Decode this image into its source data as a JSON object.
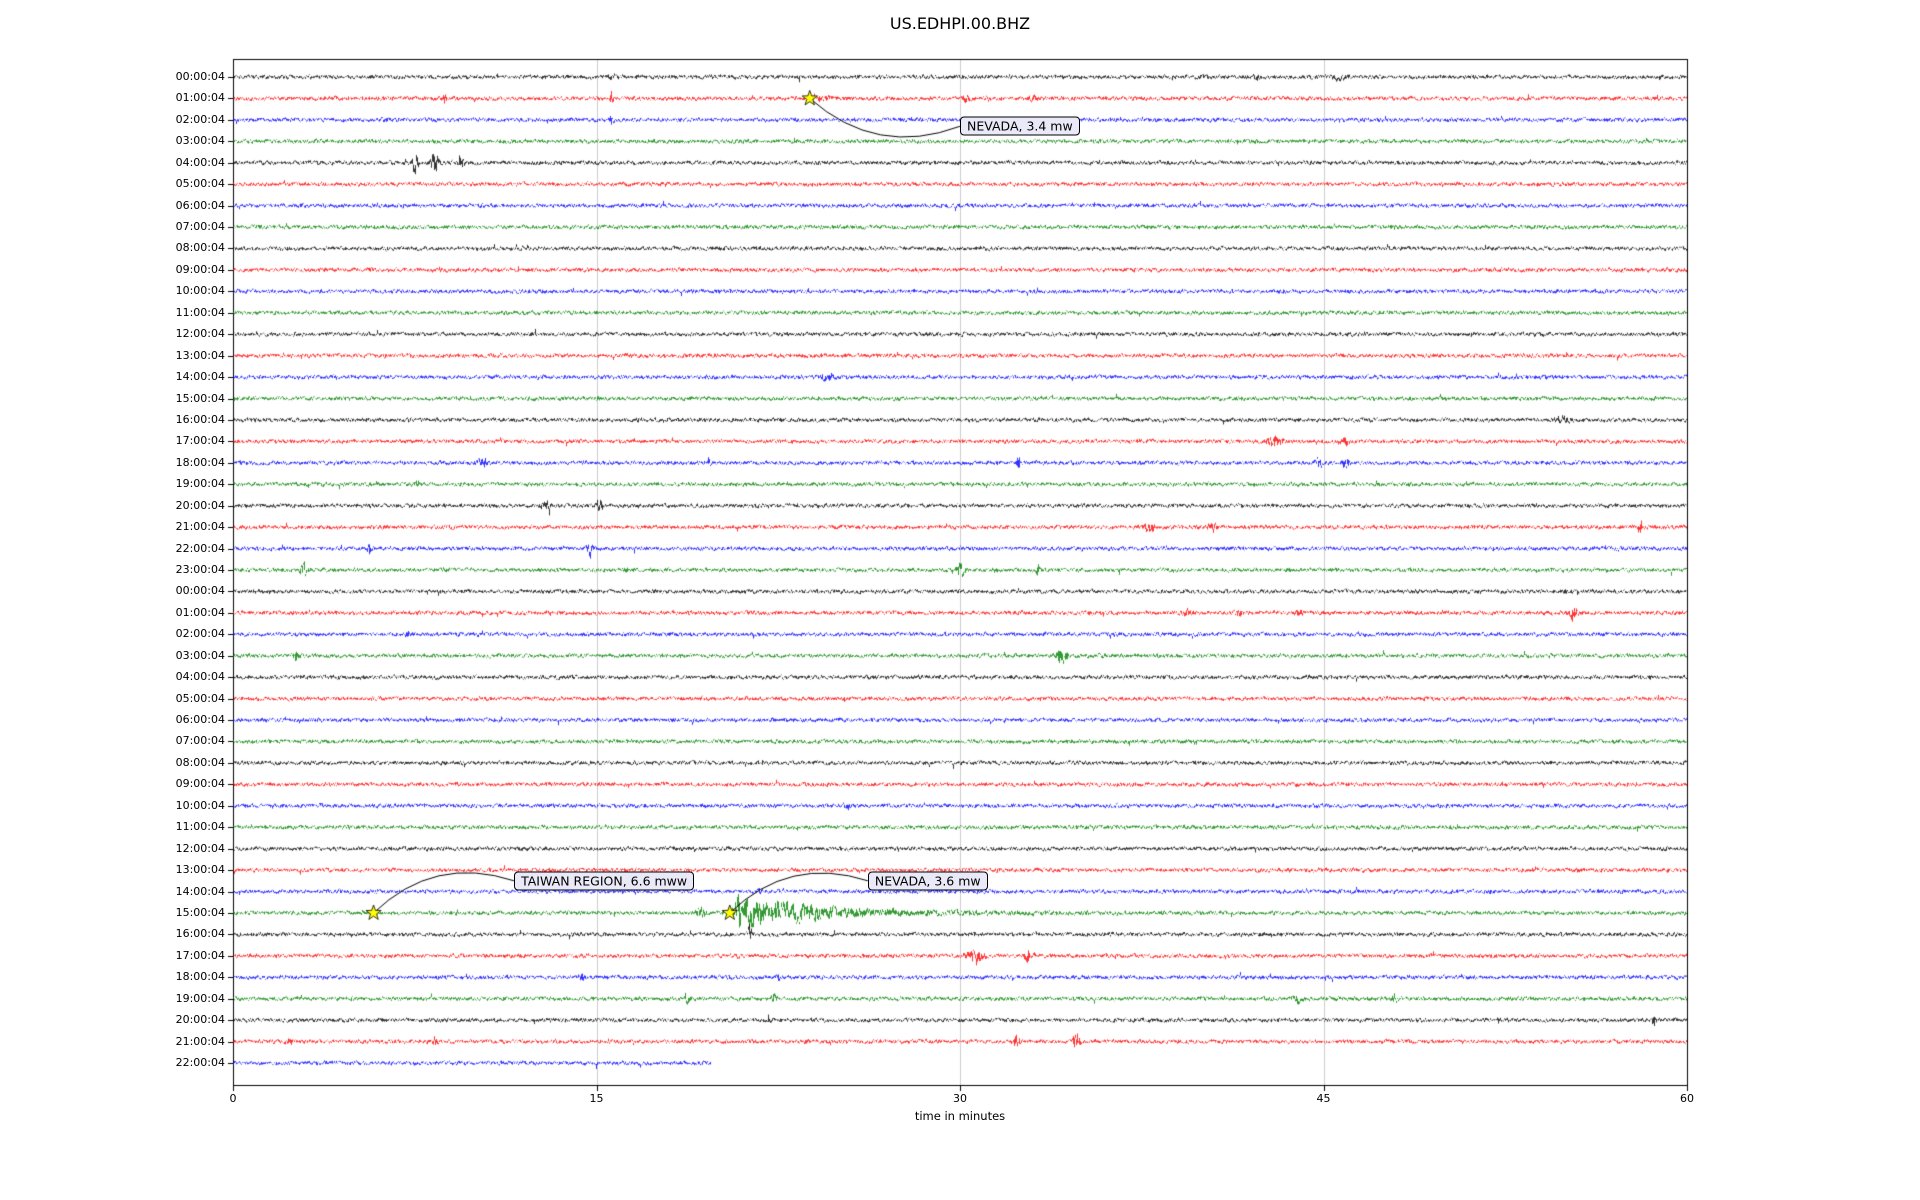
{
  "chart_data": {
    "type": "line",
    "subtype": "helicorder-dayplot",
    "title": "US.EDHPI.00.BHZ",
    "xlabel": "time in minutes",
    "xlim": [
      0,
      60
    ],
    "xticks": [
      0,
      15,
      30,
      45,
      60
    ],
    "grid": true,
    "last_trace_end_minute": 19.7,
    "trace_color_cycle": [
      "#000000",
      "#ff0000",
      "#0000ff",
      "#008000"
    ],
    "rows": [
      {
        "label": "00:00:04",
        "color": "#000000"
      },
      {
        "label": "01:00:04",
        "color": "#ff0000"
      },
      {
        "label": "02:00:04",
        "color": "#0000ff"
      },
      {
        "label": "03:00:04",
        "color": "#008000"
      },
      {
        "label": "04:00:04",
        "color": "#000000"
      },
      {
        "label": "05:00:04",
        "color": "#ff0000"
      },
      {
        "label": "06:00:04",
        "color": "#0000ff"
      },
      {
        "label": "07:00:04",
        "color": "#008000"
      },
      {
        "label": "08:00:04",
        "color": "#000000"
      },
      {
        "label": "09:00:04",
        "color": "#ff0000"
      },
      {
        "label": "10:00:04",
        "color": "#0000ff"
      },
      {
        "label": "11:00:04",
        "color": "#008000"
      },
      {
        "label": "12:00:04",
        "color": "#000000"
      },
      {
        "label": "13:00:04",
        "color": "#ff0000"
      },
      {
        "label": "14:00:04",
        "color": "#0000ff"
      },
      {
        "label": "15:00:04",
        "color": "#008000"
      },
      {
        "label": "16:00:04",
        "color": "#000000"
      },
      {
        "label": "17:00:04",
        "color": "#ff0000"
      },
      {
        "label": "18:00:04",
        "color": "#0000ff"
      },
      {
        "label": "19:00:04",
        "color": "#008000"
      },
      {
        "label": "20:00:04",
        "color": "#000000"
      },
      {
        "label": "21:00:04",
        "color": "#ff0000"
      },
      {
        "label": "22:00:04",
        "color": "#0000ff"
      },
      {
        "label": "23:00:04",
        "color": "#008000"
      },
      {
        "label": "00:00:04",
        "color": "#000000"
      },
      {
        "label": "01:00:04",
        "color": "#ff0000"
      },
      {
        "label": "02:00:04",
        "color": "#0000ff"
      },
      {
        "label": "03:00:04",
        "color": "#008000"
      },
      {
        "label": "04:00:04",
        "color": "#000000"
      },
      {
        "label": "05:00:04",
        "color": "#ff0000"
      },
      {
        "label": "06:00:04",
        "color": "#0000ff"
      },
      {
        "label": "07:00:04",
        "color": "#008000"
      },
      {
        "label": "08:00:04",
        "color": "#000000"
      },
      {
        "label": "09:00:04",
        "color": "#ff0000"
      },
      {
        "label": "10:00:04",
        "color": "#0000ff"
      },
      {
        "label": "11:00:04",
        "color": "#008000"
      },
      {
        "label": "12:00:04",
        "color": "#000000"
      },
      {
        "label": "13:00:04",
        "color": "#ff0000"
      },
      {
        "label": "14:00:04",
        "color": "#0000ff"
      },
      {
        "label": "15:00:04",
        "color": "#008000"
      },
      {
        "label": "16:00:04",
        "color": "#000000"
      },
      {
        "label": "17:00:04",
        "color": "#ff0000"
      },
      {
        "label": "18:00:04",
        "color": "#0000ff"
      },
      {
        "label": "19:00:04",
        "color": "#008000"
      },
      {
        "label": "20:00:04",
        "color": "#000000"
      },
      {
        "label": "21:00:04",
        "color": "#ff0000"
      },
      {
        "label": "22:00:04",
        "color": "#0000ff"
      }
    ],
    "events": [
      {
        "label": "NEVADA, 3.4 mw",
        "star_row": 1,
        "star_minute": 23.8,
        "box_minute": 30.0,
        "box_row": 2.3,
        "rad": 0.3,
        "marker_color": "#ffff00"
      },
      {
        "label": "TAIWAN REGION, 6.6 mww",
        "star_row": 39,
        "star_minute": 5.8,
        "box_minute": 11.6,
        "box_row": 37.5,
        "rad": -0.3,
        "marker_color": "#ffff00"
      },
      {
        "label": "NEVADA, 3.6 mw",
        "star_row": 39,
        "star_minute": 20.5,
        "box_minute": 26.2,
        "box_row": 37.5,
        "rad": -0.3,
        "marker_color": "#ffff00"
      }
    ],
    "bursts": [
      {
        "row": 0,
        "m": 15.7,
        "amp": 1.5,
        "w": 0.15
      },
      {
        "row": 0,
        "m": 42.2,
        "amp": 2.0,
        "w": 0.1
      },
      {
        "row": 0,
        "m": 45.6,
        "amp": 1.2,
        "w": 0.3
      },
      {
        "row": 1,
        "m": 8.7,
        "amp": 2.5,
        "w": 0.06
      },
      {
        "row": 1,
        "m": 15.6,
        "amp": 5.0,
        "w": 0.06
      },
      {
        "row": 1,
        "m": 24.3,
        "amp": 1.2,
        "w": 0.3
      },
      {
        "row": 1,
        "m": 30.2,
        "amp": 1.5,
        "w": 0.15
      },
      {
        "row": 1,
        "m": 33.0,
        "amp": 1.2,
        "w": 0.15
      },
      {
        "row": 2,
        "m": 15.6,
        "amp": 2.0,
        "w": 0.08
      },
      {
        "row": 4,
        "m": 7.5,
        "amp": 4.5,
        "w": 0.12
      },
      {
        "row": 4,
        "m": 8.3,
        "amp": 6.0,
        "w": 0.15
      },
      {
        "row": 4,
        "m": 9.4,
        "amp": 4.0,
        "w": 0.12
      },
      {
        "row": 14,
        "m": 24.5,
        "amp": 1.3,
        "w": 0.4
      },
      {
        "row": 16,
        "m": 54.9,
        "amp": 1.5,
        "w": 0.3
      },
      {
        "row": 17,
        "m": 43.0,
        "amp": 3.5,
        "w": 0.25
      },
      {
        "row": 17,
        "m": 45.8,
        "amp": 2.0,
        "w": 0.2
      },
      {
        "row": 18,
        "m": 10.3,
        "amp": 2.0,
        "w": 0.2
      },
      {
        "row": 18,
        "m": 19.6,
        "amp": 2.0,
        "w": 0.1
      },
      {
        "row": 18,
        "m": 32.4,
        "amp": 2.5,
        "w": 0.08
      },
      {
        "row": 18,
        "m": 44.8,
        "amp": 2.0,
        "w": 0.15
      },
      {
        "row": 18,
        "m": 45.9,
        "amp": 2.2,
        "w": 0.15
      },
      {
        "row": 19,
        "m": 7.6,
        "amp": 1.5,
        "w": 0.08
      },
      {
        "row": 20,
        "m": 12.9,
        "amp": 2.5,
        "w": 0.15
      },
      {
        "row": 20,
        "m": 15.1,
        "amp": 3.0,
        "w": 0.12
      },
      {
        "row": 21,
        "m": 37.8,
        "amp": 2.0,
        "w": 0.2
      },
      {
        "row": 21,
        "m": 40.4,
        "amp": 2.2,
        "w": 0.2
      },
      {
        "row": 21,
        "m": 58.1,
        "amp": 4.5,
        "w": 0.06
      },
      {
        "row": 22,
        "m": 5.6,
        "amp": 2.8,
        "w": 0.06
      },
      {
        "row": 22,
        "m": 14.7,
        "amp": 3.5,
        "w": 0.1
      },
      {
        "row": 23,
        "m": 2.9,
        "amp": 2.5,
        "w": 0.15
      },
      {
        "row": 23,
        "m": 16.2,
        "amp": 1.5,
        "w": 0.1
      },
      {
        "row": 23,
        "m": 30.0,
        "amp": 2.5,
        "w": 0.2
      },
      {
        "row": 23,
        "m": 33.2,
        "amp": 3.0,
        "w": 0.08
      },
      {
        "row": 25,
        "m": 39.3,
        "amp": 1.8,
        "w": 0.2
      },
      {
        "row": 25,
        "m": 41.5,
        "amp": 1.5,
        "w": 0.15
      },
      {
        "row": 25,
        "m": 44.0,
        "amp": 1.8,
        "w": 0.15
      },
      {
        "row": 25,
        "m": 55.3,
        "amp": 2.5,
        "w": 0.2
      },
      {
        "row": 26,
        "m": 7.2,
        "amp": 1.5,
        "w": 0.08
      },
      {
        "row": 27,
        "m": 2.6,
        "amp": 2.5,
        "w": 0.12
      },
      {
        "row": 27,
        "m": 34.2,
        "amp": 2.8,
        "w": 0.25
      },
      {
        "row": 34,
        "m": 25.3,
        "amp": 1.3,
        "w": 0.15
      },
      {
        "row": 38,
        "m": 21.7,
        "amp": 1.8,
        "w": 0.08
      },
      {
        "row": 39,
        "m": 19.3,
        "amp": 2.0,
        "w": 0.2
      },
      {
        "row": 39,
        "m": 20.9,
        "amp": 9.0,
        "w": 0.25,
        "decay": 1.2
      },
      {
        "row": 39,
        "m": 22.5,
        "amp": 3.0,
        "w": 0.5,
        "decay": 4.0
      },
      {
        "row": 40,
        "m": 21.3,
        "amp": 5.0,
        "w": 0.08
      },
      {
        "row": 41,
        "m": 30.6,
        "amp": 3.5,
        "w": 0.3
      },
      {
        "row": 41,
        "m": 32.8,
        "amp": 2.0,
        "w": 0.15
      },
      {
        "row": 42,
        "m": 14.4,
        "amp": 2.5,
        "w": 0.1
      },
      {
        "row": 42,
        "m": 22.5,
        "amp": 2.0,
        "w": 0.1
      },
      {
        "row": 43,
        "m": 18.7,
        "amp": 2.0,
        "w": 0.15
      },
      {
        "row": 43,
        "m": 22.3,
        "amp": 1.8,
        "w": 0.1
      },
      {
        "row": 43,
        "m": 43.9,
        "amp": 2.0,
        "w": 0.15
      },
      {
        "row": 43,
        "m": 47.9,
        "amp": 1.5,
        "w": 0.15
      },
      {
        "row": 44,
        "m": 22.1,
        "amp": 3.0,
        "w": 0.07
      },
      {
        "row": 44,
        "m": 58.6,
        "amp": 2.5,
        "w": 0.1
      },
      {
        "row": 45,
        "m": 2.3,
        "amp": 2.5,
        "w": 0.12
      },
      {
        "row": 45,
        "m": 8.3,
        "amp": 2.2,
        "w": 0.1
      },
      {
        "row": 45,
        "m": 32.3,
        "amp": 2.5,
        "w": 0.15
      },
      {
        "row": 45,
        "m": 34.8,
        "amp": 4.5,
        "w": 0.12
      }
    ]
  }
}
